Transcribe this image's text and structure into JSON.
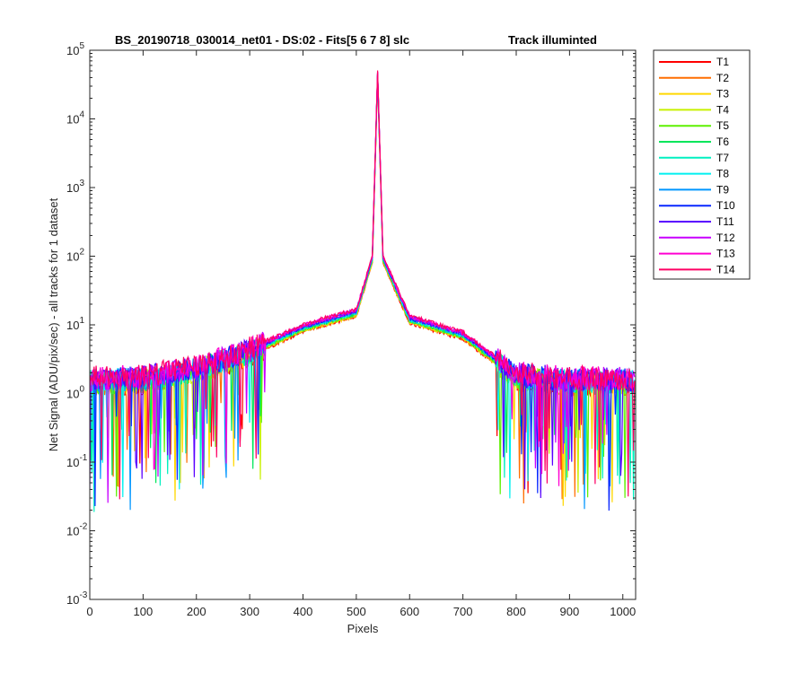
{
  "chart_data": {
    "type": "line",
    "title_left": "BS_20190718_030014_net01 - DS:02 - Fits[5   6   7   8]   slc",
    "title_right": "Track illuminted",
    "xlabel": "Pixels",
    "ylabel": "Net Signal (ADU/pix/sec) - all tracks for 1 dataset",
    "xlim": [
      0,
      1024
    ],
    "ylim": [
      0.001,
      100000
    ],
    "yscale": "log",
    "grid": false,
    "legend_position": "outside-top-right",
    "x_ticks": [
      "0",
      "100",
      "200",
      "300",
      "400",
      "500",
      "600",
      "700",
      "800",
      "900",
      "1000"
    ],
    "y_tick_base": "10",
    "y_tick_exponents": [
      "-3",
      "-2",
      "-1",
      "0",
      "1",
      "2",
      "3",
      "4",
      "5"
    ],
    "x_points": [
      0,
      100,
      200,
      300,
      400,
      500,
      530,
      540,
      550,
      600,
      700,
      800,
      900,
      1024
    ],
    "profile_values": [
      1.5,
      1.6,
      2.2,
      4.0,
      9.0,
      15.0,
      90.0,
      45000.0,
      90.0,
      12.0,
      7.0,
      1.8,
      1.5,
      1.5
    ],
    "series": [
      {
        "name": "T1",
        "color": "#ff0000"
      },
      {
        "name": "T2",
        "color": "#ff6e00"
      },
      {
        "name": "T3",
        "color": "#ffd700"
      },
      {
        "name": "T4",
        "color": "#c8f000"
      },
      {
        "name": "T5",
        "color": "#5ef000"
      },
      {
        "name": "T6",
        "color": "#00e65a"
      },
      {
        "name": "T7",
        "color": "#00f0c0"
      },
      {
        "name": "T8",
        "color": "#00f0f0"
      },
      {
        "name": "T9",
        "color": "#0096ff"
      },
      {
        "name": "T10",
        "color": "#0a28ff"
      },
      {
        "name": "T11",
        "color": "#5a00ff"
      },
      {
        "name": "T12",
        "color": "#c800ff"
      },
      {
        "name": "T13",
        "color": "#ff00d2"
      },
      {
        "name": "T14",
        "color": "#ff0064"
      }
    ]
  }
}
